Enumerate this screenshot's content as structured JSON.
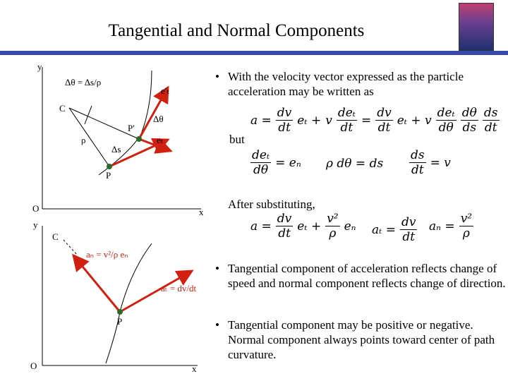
{
  "header": {
    "title": "Tangential and Normal Components"
  },
  "bullets": [
    "With the velocity vector expressed as the particle acceleration may be written as",
    "Tangential component of acceleration reflects change of speed and normal component reflects change of direction.",
    "Tangential component may be positive or negative.  Normal component always points toward center of path curvature."
  ],
  "labels": {
    "but": "but",
    "after": "After substituting,"
  },
  "equations": [
    {
      "parts": [
        "a =",
        [
          "dv",
          "dt"
        ],
        "eₜ +",
        "v",
        [
          "deₜ",
          "dt"
        ],
        "=",
        [
          "dv",
          "dt"
        ],
        "eₜ + v",
        [
          "deₜ",
          "dθ"
        ],
        [
          "dθ",
          "ds"
        ],
        [
          "ds",
          "dt"
        ]
      ]
    },
    {
      "parts": [
        [
          "deₜ",
          "dθ"
        ],
        "= eₙ"
      ]
    },
    {
      "parts": [
        "ρ dθ = ds"
      ]
    },
    {
      "parts": [
        [
          "ds",
          "dt"
        ],
        "= v"
      ]
    },
    {
      "parts": [
        "a =",
        [
          "dv",
          "dt"
        ],
        "eₜ +",
        [
          "v²",
          "ρ"
        ],
        "eₙ"
      ]
    },
    {
      "parts": [
        "aₜ =",
        [
          "dv",
          "dt"
        ]
      ]
    },
    {
      "parts": [
        "aₙ =",
        [
          "v²",
          "ρ"
        ]
      ]
    }
  ],
  "figure_top": {
    "y": "y",
    "x": "x",
    "origin": "O",
    "center": "C",
    "p": "P",
    "p_prime": "P′",
    "rho": "ρ",
    "ds": "Δs",
    "dtheta": "Δθ",
    "et": "eₜ",
    "et_prime": "e′ₜ",
    "relation": "Δθ = Δs/ρ"
  },
  "figure_bottom": {
    "y": "y",
    "x": "x",
    "origin": "O",
    "center": "C",
    "p": "P",
    "an": "aₙ = v²/ρ eₙ",
    "at": "aₜ = dv/dt"
  }
}
